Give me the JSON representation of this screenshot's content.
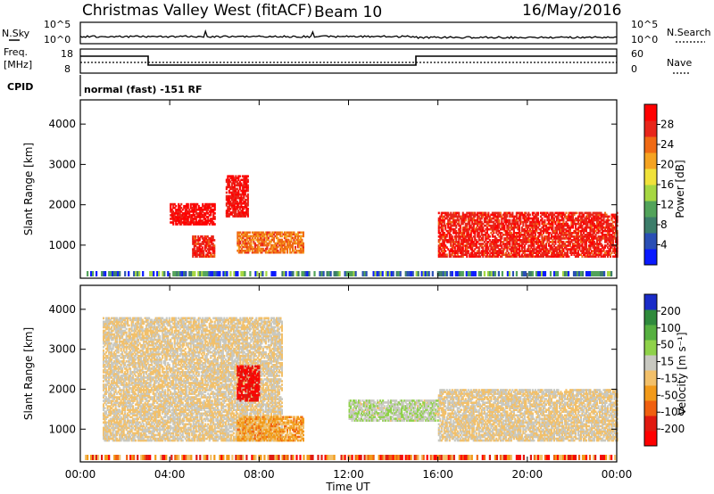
{
  "header": {
    "title": "Christmas Valley West (fitACF)",
    "beam": "Beam 10",
    "date": "16/May/2016"
  },
  "noise_panel": {
    "left_label": "N.Sky",
    "left_ticks": [
      "10^5",
      "10^0"
    ],
    "right_ticks": [
      "10^5",
      "10^0"
    ],
    "right_label": "N.Search"
  },
  "freq_panel": {
    "left_label_1": "Freq.",
    "left_label_2": "[MHz]",
    "left_ticks": [
      "18",
      "8"
    ],
    "right_ticks": [
      "60",
      "0"
    ],
    "right_label": "Nave",
    "cpid_label": "CPID",
    "cpid_value": "normal (fast) -151 RF"
  },
  "colors": {
    "power_scale": [
      "#0a1aff",
      "#2a4fb5",
      "#3c7d6a",
      "#52a35a",
      "#a6d742",
      "#f0e23a",
      "#f5a321",
      "#f06a14",
      "#e8261b",
      "#ff0000"
    ],
    "velocity_scale": [
      "#1a2cc8",
      "#2f8a3c",
      "#56b040",
      "#8fd24a",
      "#c8c8c0",
      "#f2c06a",
      "#f29a1a",
      "#f06010",
      "#e01a10",
      "#ff0000"
    ]
  },
  "chart_data": [
    {
      "type": "heatmap",
      "name": "Power",
      "ylabel": "Slant Range [km]",
      "yticks": [
        "4000",
        "3000",
        "2000",
        "1000"
      ],
      "ylim": [
        180,
        4600
      ],
      "colorbar_label": "Power [dB]",
      "colorbar_ticks": [
        "28",
        "24",
        "20",
        "16",
        "12",
        "8",
        "4"
      ],
      "colorbar_range": [
        0,
        30
      ],
      "regions": [
        {
          "t0": 4.0,
          "t1": 6.0,
          "r0": 1500,
          "r1": 2000,
          "value": 28
        },
        {
          "t0": 5.0,
          "t1": 6.0,
          "r0": 700,
          "r1": 1200,
          "value": 26
        },
        {
          "t0": 6.5,
          "t1": 7.5,
          "r0": 1700,
          "r1": 2700,
          "value": 27
        },
        {
          "t0": 7.0,
          "t1": 10.0,
          "r0": 800,
          "r1": 1300,
          "value": 22
        },
        {
          "t0": 16.0,
          "t1": 24.0,
          "r0": 700,
          "r1": 1800,
          "value": 26
        }
      ]
    },
    {
      "type": "heatmap",
      "name": "Velocity",
      "ylabel": "Slant Range [km]",
      "yticks": [
        "4000",
        "3000",
        "2000",
        "1000"
      ],
      "ylim": [
        180,
        4600
      ],
      "xlabel": "Time UT",
      "xticks": [
        "00:00",
        "04:00",
        "08:00",
        "12:00",
        "16:00",
        "20:00",
        "00:00"
      ],
      "xlim": [
        0,
        24
      ],
      "colorbar_label": "Velocity [m s⁻¹]",
      "colorbar_ticks": [
        "200",
        "100",
        "50",
        "15",
        "-15",
        "-50",
        "-100",
        "-200"
      ],
      "colorbar_range": [
        -250,
        250
      ],
      "regions": [
        {
          "t0": 1.0,
          "t1": 9.0,
          "r0": 700,
          "r1": 3800,
          "value": 0
        },
        {
          "t0": 7.0,
          "t1": 8.0,
          "r0": 1700,
          "r1": 2600,
          "value": -200
        },
        {
          "t0": 7.0,
          "t1": 10.0,
          "r0": 700,
          "r1": 1300,
          "value": -70
        },
        {
          "t0": 12.0,
          "t1": 16.0,
          "r0": 1200,
          "r1": 1700,
          "value": 40
        },
        {
          "t0": 16.0,
          "t1": 24.0,
          "r0": 700,
          "r1": 2000,
          "value": 0
        }
      ]
    }
  ]
}
